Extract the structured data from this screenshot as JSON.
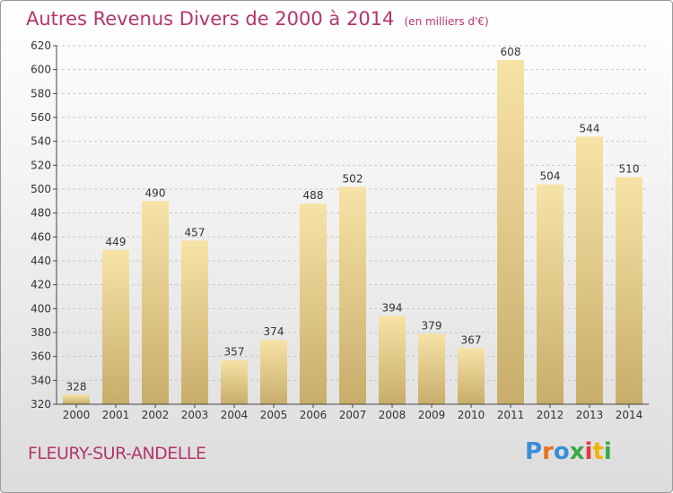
{
  "title": "Autres Revenus Divers de 2000 à 2014",
  "unit_label": "(en milliers d'€)",
  "city": "FLEURY-SUR-ANDELLE",
  "logo": "Proxiti",
  "colors": {
    "title": "#b4366d",
    "bar_light": "#f7e3a6",
    "bar_dark": "#c8ad6a",
    "grid": "#c9c9c9",
    "axis": "#444444"
  },
  "chart_data": {
    "type": "bar",
    "title": "Autres Revenus Divers de 2000 à 2014",
    "subtitle": "(en milliers d'€)",
    "categories": [
      "2000",
      "2001",
      "2002",
      "2003",
      "2004",
      "2005",
      "2006",
      "2007",
      "2008",
      "2009",
      "2010",
      "2011",
      "2012",
      "2013",
      "2014"
    ],
    "values": [
      328,
      449,
      490,
      457,
      357,
      374,
      488,
      502,
      394,
      379,
      367,
      608,
      504,
      544,
      510
    ],
    "ylim": [
      320,
      620
    ],
    "yticks": [
      320,
      340,
      360,
      380,
      400,
      420,
      440,
      460,
      480,
      500,
      520,
      540,
      560,
      580,
      600,
      620
    ],
    "grid": "horizontal",
    "xlabel": "",
    "ylabel": ""
  }
}
